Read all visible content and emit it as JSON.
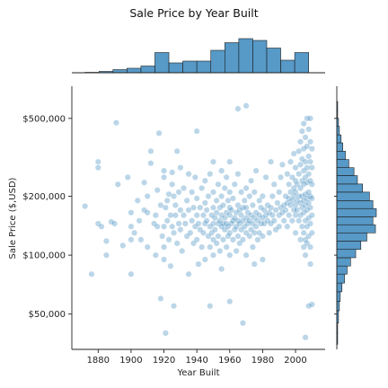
{
  "chart_data": {
    "type": "scatter",
    "title": "Sale Price by Year Built",
    "xlabel": "Year Built",
    "ylabel": "Sale Price ($,USD)",
    "xlim": [
      1864,
      2018
    ],
    "ylim": [
      33000,
      730000
    ],
    "y_scale": "log",
    "x_ticks": [
      1880,
      1900,
      1920,
      1940,
      1960,
      1980,
      2000
    ],
    "y_ticks": [
      {
        "value": 50000,
        "label": "$50,000"
      },
      {
        "value": 100000,
        "label": "$100,000"
      },
      {
        "value": 200000,
        "label": "$200,000"
      },
      {
        "value": 500000,
        "label": "$500,000"
      }
    ],
    "point_color": "#1f77b4",
    "point_opacity": 0.3,
    "grid": false,
    "marginal_top": {
      "type": "histogram",
      "bin_edges": [
        1872,
        1880.5,
        1889,
        1897.5,
        1906,
        1914.5,
        1923,
        1931.5,
        1940,
        1948.5,
        1957,
        1965.5,
        1974,
        1982.5,
        1991,
        1999.5,
        2008
      ],
      "counts": [
        1,
        3,
        7,
        10,
        15,
        45,
        22,
        26,
        26,
        50,
        67,
        76,
        72,
        55,
        28,
        45,
        90
      ]
    },
    "marginal_right": {
      "type": "histogram",
      "bins": [
        {
          "lo": 35000,
          "hi": 40000,
          "count": 1
        },
        {
          "lo": 40000,
          "hi": 45000,
          "count": 1
        },
        {
          "lo": 45000,
          "hi": 52000,
          "count": 2
        },
        {
          "lo": 52000,
          "hi": 58000,
          "count": 3
        },
        {
          "lo": 58000,
          "hi": 65000,
          "count": 4
        },
        {
          "lo": 65000,
          "hi": 72000,
          "count": 6
        },
        {
          "lo": 72000,
          "hi": 80000,
          "count": 9
        },
        {
          "lo": 80000,
          "hi": 88000,
          "count": 12
        },
        {
          "lo": 88000,
          "hi": 97000,
          "count": 16
        },
        {
          "lo": 97000,
          "hi": 107000,
          "count": 22
        },
        {
          "lo": 107000,
          "hi": 118000,
          "count": 28
        },
        {
          "lo": 118000,
          "hi": 130000,
          "count": 35
        },
        {
          "lo": 130000,
          "hi": 143000,
          "count": 45
        },
        {
          "lo": 143000,
          "hi": 157000,
          "count": 42
        },
        {
          "lo": 157000,
          "hi": 173000,
          "count": 46
        },
        {
          "lo": 173000,
          "hi": 190000,
          "count": 42
        },
        {
          "lo": 190000,
          "hi": 210000,
          "count": 38
        },
        {
          "lo": 210000,
          "hi": 231000,
          "count": 30
        },
        {
          "lo": 231000,
          "hi": 255000,
          "count": 24
        },
        {
          "lo": 255000,
          "hi": 280000,
          "count": 20
        },
        {
          "lo": 280000,
          "hi": 308000,
          "count": 14
        },
        {
          "lo": 308000,
          "hi": 340000,
          "count": 10
        },
        {
          "lo": 340000,
          "hi": 375000,
          "count": 7
        },
        {
          "lo": 375000,
          "hi": 412000,
          "count": 5
        },
        {
          "lo": 412000,
          "hi": 455000,
          "count": 3
        },
        {
          "lo": 455000,
          "hi": 500000,
          "count": 2
        },
        {
          "lo": 500000,
          "hi": 550000,
          "count": 1
        },
        {
          "lo": 550000,
          "hi": 610000,
          "count": 1
        }
      ]
    },
    "points": [
      [
        1872,
        178000
      ],
      [
        1876,
        80000
      ],
      [
        1880,
        300000
      ],
      [
        1880,
        280000
      ],
      [
        1880,
        145000
      ],
      [
        1882,
        140000
      ],
      [
        1885,
        118000
      ],
      [
        1885,
        100000
      ],
      [
        1888,
        148000
      ],
      [
        1890,
        145000
      ],
      [
        1891,
        475000
      ],
      [
        1892,
        230000
      ],
      [
        1895,
        112000
      ],
      [
        1898,
        250000
      ],
      [
        1900,
        165000
      ],
      [
        1900,
        80000
      ],
      [
        1900,
        120000
      ],
      [
        1900,
        140000
      ],
      [
        1902,
        130000
      ],
      [
        1904,
        190000
      ],
      [
        1905,
        150000
      ],
      [
        1906,
        120000
      ],
      [
        1908,
        170000
      ],
      [
        1908,
        235000
      ],
      [
        1910,
        110000
      ],
      [
        1910,
        165000
      ],
      [
        1910,
        200000
      ],
      [
        1912,
        340000
      ],
      [
        1912,
        295000
      ],
      [
        1914,
        145000
      ],
      [
        1915,
        160000
      ],
      [
        1915,
        100000
      ],
      [
        1916,
        215000
      ],
      [
        1916,
        140000
      ],
      [
        1917,
        420000
      ],
      [
        1918,
        60000
      ],
      [
        1918,
        180000
      ],
      [
        1919,
        125000
      ],
      [
        1920,
        250000
      ],
      [
        1920,
        140000
      ],
      [
        1920,
        110000
      ],
      [
        1920,
        270000
      ],
      [
        1920,
        95000
      ],
      [
        1921,
        175000
      ],
      [
        1921,
        40000
      ],
      [
        1922,
        190000
      ],
      [
        1922,
        150000
      ],
      [
        1923,
        205000
      ],
      [
        1923,
        120000
      ],
      [
        1924,
        160000
      ],
      [
        1924,
        88000
      ],
      [
        1925,
        230000
      ],
      [
        1925,
        140000
      ],
      [
        1925,
        265000
      ],
      [
        1926,
        130000
      ],
      [
        1926,
        200000
      ],
      [
        1926,
        55000
      ],
      [
        1927,
        160000
      ],
      [
        1927,
        180000
      ],
      [
        1928,
        115000
      ],
      [
        1928,
        340000
      ],
      [
        1929,
        145000
      ],
      [
        1929,
        210000
      ],
      [
        1930,
        170000
      ],
      [
        1930,
        135000
      ],
      [
        1930,
        280000
      ],
      [
        1931,
        105000
      ],
      [
        1932,
        160000
      ],
      [
        1932,
        220000
      ],
      [
        1933,
        145000
      ],
      [
        1934,
        125000
      ],
      [
        1934,
        190000
      ],
      [
        1935,
        170000
      ],
      [
        1935,
        80000
      ],
      [
        1935,
        260000
      ],
      [
        1936,
        130000
      ],
      [
        1937,
        150000
      ],
      [
        1937,
        210000
      ],
      [
        1938,
        115000
      ],
      [
        1938,
        175000
      ],
      [
        1939,
        140000
      ],
      [
        1939,
        250000
      ],
      [
        1940,
        160000
      ],
      [
        1940,
        120000
      ],
      [
        1940,
        195000
      ],
      [
        1940,
        430000
      ],
      [
        1941,
        145000
      ],
      [
        1941,
        90000
      ],
      [
        1942,
        175000
      ],
      [
        1942,
        135000
      ],
      [
        1943,
        220000
      ],
      [
        1943,
        110000
      ],
      [
        1944,
        160000
      ],
      [
        1944,
        130000
      ],
      [
        1945,
        185000
      ],
      [
        1945,
        145000
      ],
      [
        1945,
        95000
      ],
      [
        1945,
        240000
      ],
      [
        1946,
        150000
      ],
      [
        1946,
        170000
      ],
      [
        1947,
        125000
      ],
      [
        1947,
        200000
      ],
      [
        1948,
        140000
      ],
      [
        1948,
        110000
      ],
      [
        1948,
        260000
      ],
      [
        1948,
        55000
      ],
      [
        1949,
        160000
      ],
      [
        1949,
        130000
      ],
      [
        1950,
        145000
      ],
      [
        1950,
        175000
      ],
      [
        1950,
        120000
      ],
      [
        1950,
        210000
      ],
      [
        1950,
        100000
      ],
      [
        1950,
        300000
      ],
      [
        1951,
        155000
      ],
      [
        1951,
        135000
      ],
      [
        1952,
        165000
      ],
      [
        1952,
        190000
      ],
      [
        1952,
        115000
      ],
      [
        1953,
        145000
      ],
      [
        1953,
        125000
      ],
      [
        1953,
        230000
      ],
      [
        1954,
        150000
      ],
      [
        1954,
        175000
      ],
      [
        1954,
        105000
      ],
      [
        1955,
        160000
      ],
      [
        1955,
        140000
      ],
      [
        1955,
        200000
      ],
      [
        1955,
        85000
      ],
      [
        1955,
        270000
      ],
      [
        1956,
        145000
      ],
      [
        1956,
        120000
      ],
      [
        1956,
        180000
      ],
      [
        1957,
        155000
      ],
      [
        1957,
        135000
      ],
      [
        1957,
        220000
      ],
      [
        1958,
        165000
      ],
      [
        1958,
        145000
      ],
      [
        1958,
        110000
      ],
      [
        1958,
        250000
      ],
      [
        1959,
        140000
      ],
      [
        1959,
        190000
      ],
      [
        1959,
        125000
      ],
      [
        1960,
        160000
      ],
      [
        1960,
        130000
      ],
      [
        1960,
        175000
      ],
      [
        1960,
        210000
      ],
      [
        1960,
        100000
      ],
      [
        1960,
        300000
      ],
      [
        1960,
        58000
      ],
      [
        1961,
        145000
      ],
      [
        1961,
        170000
      ],
      [
        1962,
        150000
      ],
      [
        1962,
        120000
      ],
      [
        1962,
        195000
      ],
      [
        1963,
        155000
      ],
      [
        1963,
        135000
      ],
      [
        1963,
        230000
      ],
      [
        1964,
        165000
      ],
      [
        1964,
        140000
      ],
      [
        1964,
        105000
      ],
      [
        1965,
        150000
      ],
      [
        1965,
        180000
      ],
      [
        1965,
        125000
      ],
      [
        1965,
        260000
      ],
      [
        1965,
        560000
      ],
      [
        1966,
        145000
      ],
      [
        1966,
        170000
      ],
      [
        1966,
        115000
      ],
      [
        1967,
        160000
      ],
      [
        1967,
        135000
      ],
      [
        1967,
        210000
      ],
      [
        1968,
        150000
      ],
      [
        1968,
        175000
      ],
      [
        1968,
        120000
      ],
      [
        1968,
        45000
      ],
      [
        1969,
        140000
      ],
      [
        1969,
        190000
      ],
      [
        1970,
        155000
      ],
      [
        1970,
        130000
      ],
      [
        1970,
        175000
      ],
      [
        1970,
        220000
      ],
      [
        1970,
        100000
      ],
      [
        1970,
        580000
      ],
      [
        1971,
        145000
      ],
      [
        1971,
        165000
      ],
      [
        1972,
        150000
      ],
      [
        1972,
        125000
      ],
      [
        1972,
        200000
      ],
      [
        1973,
        160000
      ],
      [
        1973,
        135000
      ],
      [
        1973,
        240000
      ],
      [
        1974,
        145000
      ],
      [
        1974,
        110000
      ],
      [
        1974,
        180000
      ],
      [
        1975,
        155000
      ],
      [
        1975,
        130000
      ],
      [
        1975,
        210000
      ],
      [
        1975,
        90000
      ],
      [
        1976,
        165000
      ],
      [
        1976,
        140000
      ],
      [
        1976,
        270000
      ],
      [
        1977,
        150000
      ],
      [
        1977,
        120000
      ],
      [
        1978,
        160000
      ],
      [
        1978,
        190000
      ],
      [
        1978,
        130000
      ],
      [
        1979,
        145000
      ],
      [
        1979,
        175000
      ],
      [
        1980,
        155000
      ],
      [
        1980,
        125000
      ],
      [
        1980,
        200000
      ],
      [
        1980,
        95000
      ],
      [
        1981,
        170000
      ],
      [
        1981,
        145000
      ],
      [
        1982,
        160000
      ],
      [
        1982,
        250000
      ],
      [
        1983,
        150000
      ],
      [
        1983,
        180000
      ],
      [
        1984,
        165000
      ],
      [
        1984,
        130000
      ],
      [
        1985,
        175000
      ],
      [
        1985,
        145000
      ],
      [
        1985,
        300000
      ],
      [
        1986,
        160000
      ],
      [
        1986,
        200000
      ],
      [
        1987,
        150000
      ],
      [
        1987,
        230000
      ],
      [
        1988,
        170000
      ],
      [
        1988,
        135000
      ],
      [
        1989,
        185000
      ],
      [
        1990,
        160000
      ],
      [
        1990,
        210000
      ],
      [
        1990,
        140000
      ],
      [
        1991,
        175000
      ],
      [
        1991,
        250000
      ],
      [
        1992,
        165000
      ],
      [
        1992,
        290000
      ],
      [
        1993,
        180000
      ],
      [
        1993,
        150000
      ],
      [
        1994,
        200000
      ],
      [
        1994,
        170000
      ],
      [
        1995,
        185000
      ],
      [
        1995,
        260000
      ],
      [
        1995,
        140000
      ],
      [
        1996,
        195000
      ],
      [
        1996,
        230000
      ],
      [
        1996,
        160000
      ],
      [
        1997,
        210000
      ],
      [
        1997,
        180000
      ],
      [
        1997,
        300000
      ],
      [
        1998,
        190000
      ],
      [
        1998,
        250000
      ],
      [
        1998,
        150000
      ],
      [
        1999,
        200000
      ],
      [
        1999,
        220000
      ],
      [
        1999,
        170000
      ],
      [
        1999,
        330000
      ],
      [
        2000,
        180000
      ],
      [
        2000,
        210000
      ],
      [
        2000,
        160000
      ],
      [
        2000,
        280000
      ],
      [
        2000,
        130000
      ],
      [
        2000,
        240000
      ],
      [
        2001,
        190000
      ],
      [
        2001,
        230000
      ],
      [
        2001,
        170000
      ],
      [
        2002,
        200000
      ],
      [
        2002,
        260000
      ],
      [
        2002,
        150000
      ],
      [
        2002,
        340000
      ],
      [
        2003,
        185000
      ],
      [
        2003,
        220000
      ],
      [
        2003,
        160000
      ],
      [
        2003,
        290000
      ],
      [
        2003,
        120000
      ],
      [
        2003,
        380000
      ],
      [
        2004,
        200000
      ],
      [
        2004,
        240000
      ],
      [
        2004,
        175000
      ],
      [
        2004,
        310000
      ],
      [
        2004,
        140000
      ],
      [
        2004,
        430000
      ],
      [
        2005,
        190000
      ],
      [
        2005,
        230000
      ],
      [
        2005,
        165000
      ],
      [
        2005,
        270000
      ],
      [
        2005,
        130000
      ],
      [
        2005,
        350000
      ],
      [
        2005,
        110000
      ],
      [
        2005,
        470000
      ],
      [
        2006,
        205000
      ],
      [
        2006,
        250000
      ],
      [
        2006,
        180000
      ],
      [
        2006,
        300000
      ],
      [
        2006,
        150000
      ],
      [
        2006,
        400000
      ],
      [
        2006,
        120000
      ],
      [
        2006,
        100000
      ],
      [
        2006,
        38000
      ],
      [
        2007,
        195000
      ],
      [
        2007,
        235000
      ],
      [
        2007,
        170000
      ],
      [
        2007,
        280000
      ],
      [
        2007,
        140000
      ],
      [
        2007,
        360000
      ],
      [
        2007,
        115000
      ],
      [
        2007,
        500000
      ],
      [
        2008,
        210000
      ],
      [
        2008,
        260000
      ],
      [
        2008,
        185000
      ],
      [
        2008,
        320000
      ],
      [
        2008,
        155000
      ],
      [
        2008,
        125000
      ],
      [
        2008,
        440000
      ],
      [
        2008,
        55000
      ],
      [
        2009,
        200000
      ],
      [
        2009,
        240000
      ],
      [
        2009,
        175000
      ],
      [
        2009,
        300000
      ],
      [
        2009,
        145000
      ],
      [
        2009,
        380000
      ],
      [
        2009,
        110000
      ],
      [
        2009,
        90000
      ],
      [
        2009,
        500000
      ],
      [
        2010,
        195000
      ],
      [
        2010,
        230000
      ],
      [
        2010,
        160000
      ],
      [
        2010,
        280000
      ],
      [
        2010,
        130000
      ],
      [
        2010,
        350000
      ],
      [
        2010,
        56000
      ]
    ]
  }
}
